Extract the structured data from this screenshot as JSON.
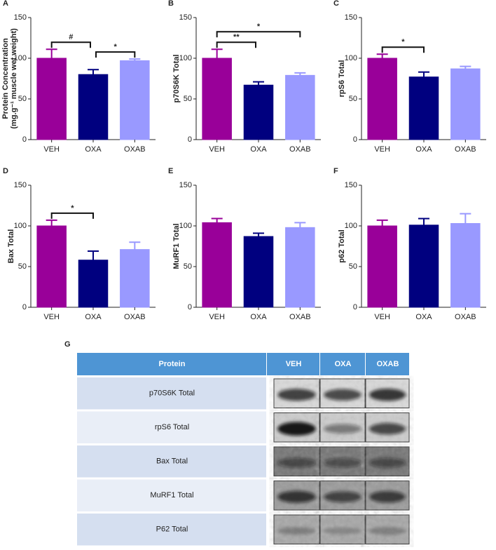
{
  "chart_data": [
    {
      "type": "bar",
      "label": "A",
      "ylabel": [
        "Protein Concentration",
        "(mg.g⁻¹ muscle wet weight)"
      ],
      "categories": [
        "VEH",
        "OXA",
        "OXAB"
      ],
      "values": [
        100,
        80,
        97
      ],
      "errors": [
        11,
        6,
        2
      ],
      "colors": [
        "#990099",
        "#00007f",
        "#9999ff"
      ],
      "ylim": [
        0,
        150
      ],
      "yticks": [
        0,
        50,
        100,
        150
      ],
      "annotations": [
        {
          "text": "#",
          "between": [
            "VEH",
            "OXA"
          ]
        },
        {
          "text": "*",
          "between": [
            "OXA",
            "OXAB"
          ]
        }
      ]
    },
    {
      "type": "bar",
      "label": "B",
      "ylabel": "p70S6K Total",
      "categories": [
        "VEH",
        "OXA",
        "OXAB"
      ],
      "values": [
        100,
        67,
        79
      ],
      "errors": [
        11,
        4,
        3
      ],
      "colors": [
        "#990099",
        "#00007f",
        "#9999ff"
      ],
      "ylim": [
        0,
        150
      ],
      "yticks": [
        0,
        50,
        100,
        150
      ],
      "annotations": [
        {
          "text": "**",
          "between": [
            "VEH",
            "OXA"
          ]
        },
        {
          "text": "*",
          "between": [
            "VEH",
            "OXAB"
          ]
        }
      ]
    },
    {
      "type": "bar",
      "label": "C",
      "ylabel": "rpS6 Total",
      "categories": [
        "VEH",
        "OXA",
        "OXAB"
      ],
      "values": [
        100,
        77,
        87
      ],
      "errors": [
        5,
        6,
        3
      ],
      "colors": [
        "#990099",
        "#00007f",
        "#9999ff"
      ],
      "ylim": [
        0,
        150
      ],
      "yticks": [
        0,
        50,
        100,
        150
      ],
      "annotations": [
        {
          "text": "*",
          "between": [
            "VEH",
            "OXA"
          ]
        }
      ]
    },
    {
      "type": "bar",
      "label": "D",
      "ylabel": "Bax Total",
      "categories": [
        "VEH",
        "OXA",
        "OXAB"
      ],
      "values": [
        100,
        58,
        71
      ],
      "errors": [
        7,
        11,
        9
      ],
      "colors": [
        "#990099",
        "#00007f",
        "#9999ff"
      ],
      "ylim": [
        0,
        150
      ],
      "yticks": [
        0,
        50,
        100,
        150
      ],
      "annotations": [
        {
          "text": "*",
          "between": [
            "VEH",
            "OXA"
          ]
        }
      ]
    },
    {
      "type": "bar",
      "label": "E",
      "ylabel": "MuRF1 Total",
      "categories": [
        "VEH",
        "OXA",
        "OXAB"
      ],
      "values": [
        104,
        87,
        98
      ],
      "errors": [
        5,
        4,
        6
      ],
      "colors": [
        "#990099",
        "#00007f",
        "#9999ff"
      ],
      "ylim": [
        0,
        150
      ],
      "yticks": [
        0,
        50,
        100,
        150
      ],
      "annotations": []
    },
    {
      "type": "bar",
      "label": "F",
      "ylabel": "p62 Total",
      "categories": [
        "VEH",
        "OXA",
        "OXAB"
      ],
      "values": [
        100,
        101,
        103
      ],
      "errors": [
        7,
        8,
        12
      ],
      "colors": [
        "#990099",
        "#00007f",
        "#9999ff"
      ],
      "ylim": [
        0,
        150
      ],
      "yticks": [
        0,
        50,
        100,
        150
      ],
      "annotations": []
    }
  ],
  "table": {
    "label": "G",
    "header": [
      "Protein",
      "VEH",
      "OXA",
      "OXAB"
    ],
    "rows": [
      "p70S6K Total",
      "rpS6 Total",
      "Bax Total",
      "MuRF1 Total",
      "P62 Total"
    ]
  }
}
